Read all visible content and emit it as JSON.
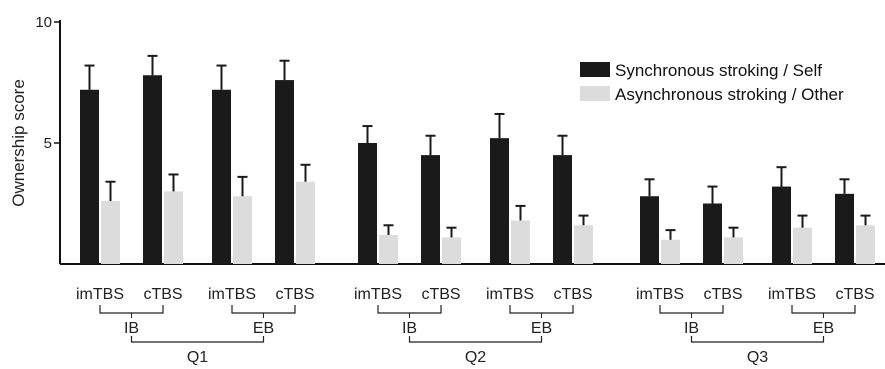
{
  "chart_data": {
    "type": "bar",
    "ylabel": "Ownership score",
    "ylim": [
      0,
      10
    ],
    "yticks": [
      "10",
      "5"
    ],
    "groups": [
      {
        "label": "Q1",
        "sub_groups": [
          {
            "label": "IB",
            "conditions": [
              "imTBS",
              "cTBS"
            ]
          },
          {
            "label": "EB",
            "conditions": [
              "imTBS",
              "cTBS"
            ]
          }
        ]
      },
      {
        "label": "Q2",
        "sub_groups": [
          {
            "label": "IB",
            "conditions": [
              "imTBS",
              "cTBS"
            ]
          },
          {
            "label": "EB",
            "conditions": [
              "imTBS",
              "cTBS"
            ]
          }
        ]
      },
      {
        "label": "Q3",
        "sub_groups": [
          {
            "label": "IB",
            "conditions": [
              "imTBS",
              "cTBS"
            ]
          },
          {
            "label": "EB",
            "conditions": [
              "imTBS",
              "cTBS"
            ]
          }
        ]
      }
    ],
    "series": [
      {
        "name": "Synchronous stroking / Self",
        "color": "#1a1a1a",
        "values": [
          7.2,
          7.8,
          7.2,
          7.6,
          5.0,
          4.5,
          5.2,
          4.5,
          2.8,
          2.5,
          3.2,
          2.9
        ],
        "errors": [
          1.0,
          0.8,
          1.0,
          0.8,
          0.7,
          0.8,
          1.0,
          0.8,
          0.7,
          0.7,
          0.8,
          0.6
        ]
      },
      {
        "name": "Asynchronous stroking / Other",
        "color": "#dcdcdc",
        "values": [
          2.6,
          3.0,
          2.8,
          3.4,
          1.2,
          1.1,
          1.8,
          1.6,
          1.0,
          1.1,
          1.5,
          1.6
        ],
        "errors": [
          0.8,
          0.7,
          0.8,
          0.7,
          0.4,
          0.4,
          0.6,
          0.4,
          0.4,
          0.4,
          0.5,
          0.4
        ]
      }
    ],
    "legend_position": "top-right"
  }
}
